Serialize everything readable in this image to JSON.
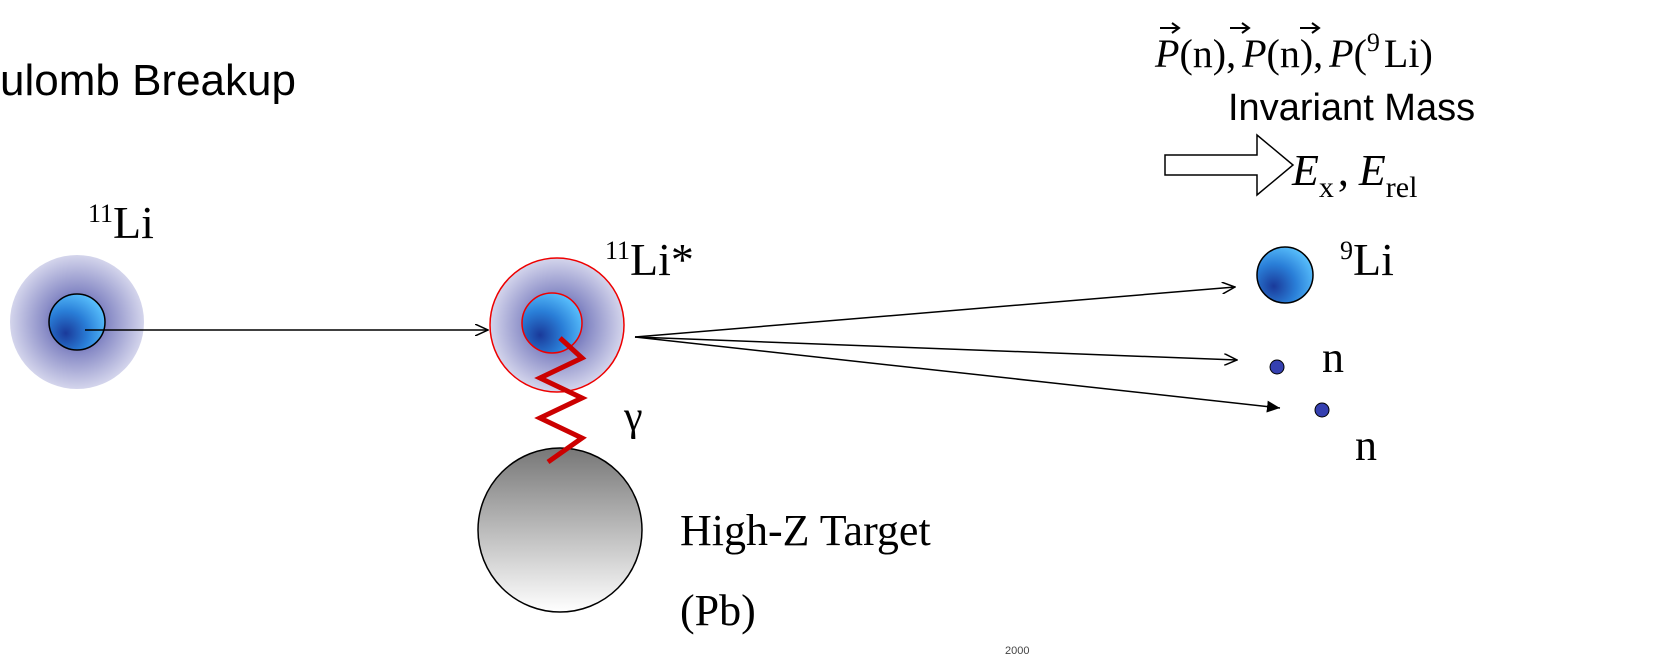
{
  "title": "ulomb Breakup",
  "projectile": {
    "mass": "11",
    "label": "Li"
  },
  "excited": {
    "mass": "11",
    "label": "Li*"
  },
  "photon": "γ",
  "target": {
    "label": "High-Z Target",
    "material": "(Pb)"
  },
  "fragments": [
    {
      "mass": "9",
      "label": "Li"
    },
    {
      "label": "n"
    },
    {
      "label": "n"
    }
  ],
  "measurement": {
    "momenta": [
      {
        "symbol": "P",
        "arg": "(n),"
      },
      {
        "symbol": "P",
        "arg": "(n),"
      },
      {
        "symbol": "P",
        "open": "(",
        "mass": "9",
        "arg": "Li)"
      }
    ],
    "method": "Invariant Mass",
    "result": {
      "symbol1": "E",
      "sub1": "x",
      "sep": ",",
      "symbol2": "E",
      "sub2": "rel"
    }
  },
  "footer": "2000"
}
